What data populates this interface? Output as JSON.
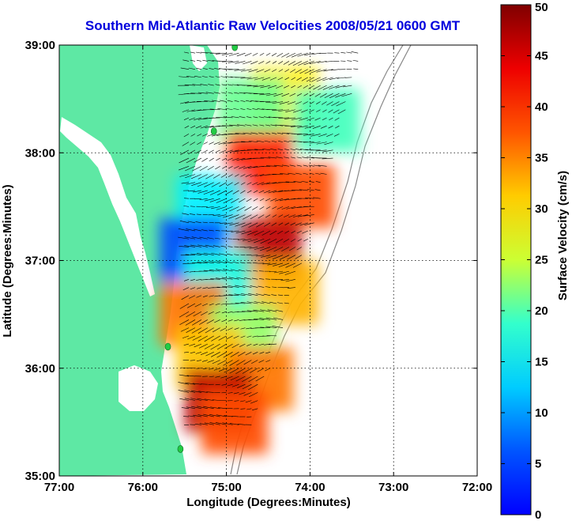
{
  "chart_data": {
    "type": "heatmap",
    "title": "Southern Mid-Atlantic Raw Velocities 2008/05/21 0600 GMT",
    "xlabel": "Longitude (Degrees:Minutes)",
    "ylabel": "Latitude (Degrees:Minutes)",
    "colorbar_label": "Surface Velocity (cm/s)",
    "x_ticks": [
      "77:00",
      "76:00",
      "75:00",
      "74:00",
      "73:00",
      "72:00"
    ],
    "x_tick_values": [
      -77,
      -76,
      -75,
      -74,
      -73,
      -72
    ],
    "y_ticks": [
      "39:00",
      "38:00",
      "37:00",
      "36:00",
      "35:00"
    ],
    "y_tick_values": [
      39,
      38,
      37,
      36,
      35
    ],
    "xlim": [
      -77,
      -72
    ],
    "ylim": [
      35,
      39
    ],
    "clim": [
      0,
      50
    ],
    "colorbar_ticks": [
      "50",
      "45",
      "40",
      "35",
      "30",
      "25",
      "20",
      "15",
      "10",
      "5",
      "0"
    ],
    "colorbar_tick_values": [
      50,
      45,
      40,
      35,
      30,
      25,
      20,
      15,
      10,
      5,
      0
    ],
    "colormap": "jet",
    "grid": true,
    "colors": {
      "land": "#5ee8a4",
      "water_inlet": "#ffffff",
      "title": "#0000dd",
      "site_marker": "#22cc44",
      "bathymetry": "#888888"
    },
    "stations": [
      {
        "lon": -74.9,
        "lat": 38.98
      },
      {
        "lon": -75.15,
        "lat": 38.2
      },
      {
        "lon": -75.7,
        "lat": 36.2
      },
      {
        "lon": -75.55,
        "lat": 35.25
      }
    ],
    "velocity_field_regions": [
      {
        "lon": -74.3,
        "lat": 38.5,
        "speed": 32
      },
      {
        "lon": -74.7,
        "lat": 38.4,
        "speed": 24
      },
      {
        "lon": -73.8,
        "lat": 38.3,
        "speed": 22
      },
      {
        "lon": -74.6,
        "lat": 37.9,
        "speed": 42
      },
      {
        "lon": -74.1,
        "lat": 37.6,
        "speed": 40
      },
      {
        "lon": -75.2,
        "lat": 37.5,
        "speed": 18
      },
      {
        "lon": -75.4,
        "lat": 37.1,
        "speed": 10
      },
      {
        "lon": -74.5,
        "lat": 37.1,
        "speed": 47
      },
      {
        "lon": -75.1,
        "lat": 36.8,
        "speed": 20
      },
      {
        "lon": -74.3,
        "lat": 36.7,
        "speed": 35
      },
      {
        "lon": -75.4,
        "lat": 36.5,
        "speed": 38
      },
      {
        "lon": -74.8,
        "lat": 36.3,
        "speed": 26
      },
      {
        "lon": -75.2,
        "lat": 36.1,
        "speed": 34
      },
      {
        "lon": -74.6,
        "lat": 35.9,
        "speed": 38
      },
      {
        "lon": -75.1,
        "lat": 35.7,
        "speed": 47
      },
      {
        "lon": -74.9,
        "lat": 35.5,
        "speed": 40
      }
    ]
  }
}
